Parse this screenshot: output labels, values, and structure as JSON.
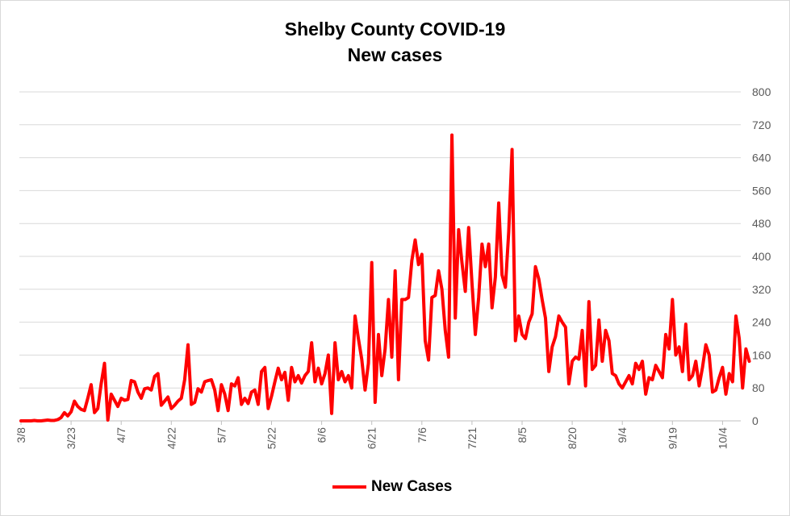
{
  "chart_data": {
    "type": "line",
    "title": "Shelby County COVID-19",
    "subtitle": "New cases",
    "xlabel": "",
    "ylabel": "",
    "ylim": [
      0,
      800
    ],
    "yticks": [
      0,
      80,
      160,
      240,
      320,
      400,
      480,
      560,
      640,
      720,
      800
    ],
    "xtick_labels": [
      "3/8",
      "3/23",
      "4/7",
      "4/22",
      "5/7",
      "5/22",
      "6/6",
      "6/21",
      "7/6",
      "7/21",
      "8/5",
      "8/20",
      "9/4",
      "9/19",
      "10/4"
    ],
    "xtick_index": [
      0,
      15,
      30,
      45,
      60,
      75,
      90,
      105,
      120,
      135,
      150,
      165,
      180,
      195,
      210
    ],
    "grid": "horizontal",
    "legend_position": "bottom",
    "y_axis_side": "right",
    "color": "#ff0000",
    "series": [
      {
        "name": "New Cases",
        "start_date": "3/8",
        "values": [
          0,
          0,
          0,
          0,
          1,
          0,
          0,
          1,
          2,
          1,
          1,
          3,
          8,
          20,
          12,
          22,
          48,
          35,
          28,
          25,
          55,
          88,
          20,
          30,
          90,
          140,
          2,
          65,
          50,
          35,
          55,
          50,
          52,
          98,
          95,
          70,
          55,
          78,
          80,
          75,
          108,
          115,
          38,
          48,
          58,
          30,
          38,
          48,
          55,
          100,
          185,
          40,
          45,
          78,
          70,
          95,
          98,
          100,
          75,
          25,
          88,
          65,
          25,
          90,
          85,
          105,
          40,
          55,
          42,
          70,
          75,
          40,
          120,
          130,
          30,
          60,
          95,
          128,
          100,
          118,
          50,
          130,
          95,
          110,
          92,
          110,
          120,
          190,
          95,
          128,
          90,
          115,
          160,
          18,
          190,
          100,
          120,
          95,
          110,
          80,
          255,
          200,
          150,
          75,
          140,
          385,
          45,
          210,
          110,
          175,
          295,
          155,
          365,
          100,
          295,
          295,
          300,
          390,
          440,
          380,
          405,
          195,
          148,
          300,
          305,
          365,
          320,
          220,
          155,
          695,
          250,
          465,
          385,
          315,
          470,
          335,
          210,
          300,
          430,
          375,
          430,
          275,
          350,
          530,
          355,
          325,
          460,
          660,
          195,
          255,
          210,
          200,
          240,
          260,
          375,
          345,
          295,
          250,
          120,
          180,
          205,
          255,
          240,
          228,
          90,
          145,
          155,
          150,
          220,
          85,
          290,
          125,
          135,
          245,
          145,
          220,
          195,
          115,
          110,
          90,
          80,
          95,
          110,
          90,
          140,
          125,
          145,
          65,
          105,
          100,
          135,
          120,
          105,
          210,
          175,
          295,
          160,
          180,
          120,
          235,
          100,
          110,
          145,
          85,
          130,
          185,
          160,
          70,
          75,
          105,
          130,
          65,
          115,
          95,
          255,
          200,
          80,
          175,
          145
        ]
      }
    ]
  }
}
